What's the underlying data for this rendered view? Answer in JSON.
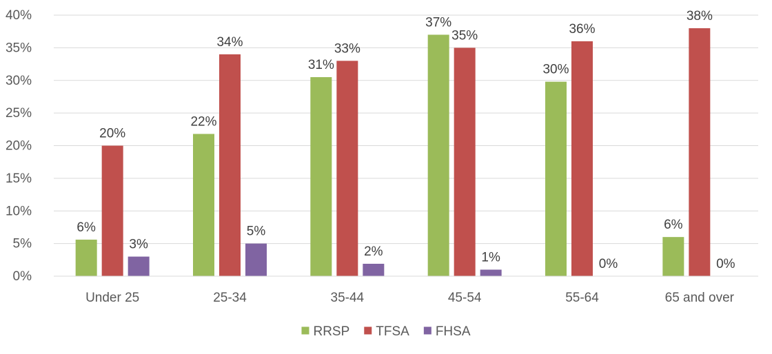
{
  "chart_data": {
    "type": "bar",
    "title": "",
    "xlabel": "",
    "ylabel": "",
    "ylim": [
      0,
      40
    ],
    "ytick_step": 5,
    "ytick_labels": [
      "0%",
      "5%",
      "10%",
      "15%",
      "20%",
      "25%",
      "30%",
      "35%",
      "40%"
    ],
    "grid": true,
    "legend_position": "bottom",
    "categories": [
      "Under 25",
      "25-34",
      "35-44",
      "45-54",
      "55-64",
      "65 and over"
    ],
    "series": [
      {
        "name": "RRSP",
        "color": "#9BBB59",
        "values": [
          5.6,
          21.8,
          30.5,
          37.0,
          29.8,
          6.0
        ],
        "labels": [
          "6%",
          "22%",
          "31%",
          "37%",
          "30%",
          "6%"
        ]
      },
      {
        "name": "TFSA",
        "color": "#C0504D",
        "values": [
          20.0,
          34.0,
          33.0,
          35.0,
          36.0,
          38.0
        ],
        "labels": [
          "20%",
          "34%",
          "33%",
          "35%",
          "36%",
          "38%"
        ]
      },
      {
        "name": "FHSA",
        "color": "#8064A2",
        "values": [
          3.0,
          5.0,
          1.9,
          1.0,
          0.0,
          0.0
        ],
        "labels": [
          "3%",
          "5%",
          "2%",
          "1%",
          "0%",
          "0%"
        ]
      }
    ]
  }
}
